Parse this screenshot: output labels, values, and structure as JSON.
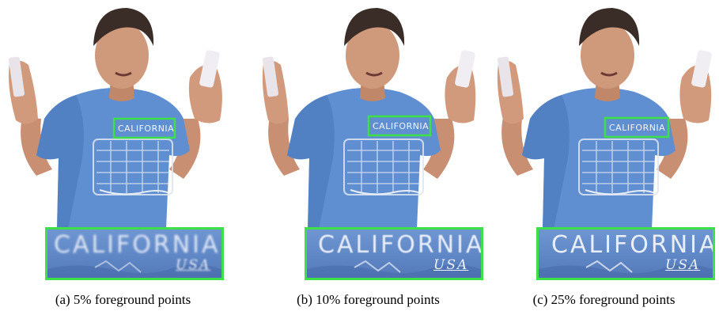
{
  "figure": {
    "panels": [
      {
        "caption": "(a) 5% foreground points",
        "shirt_text": "CALIFORNIA",
        "zoom_text": "CALIFORNIA",
        "zoom_subtext": "USA"
      },
      {
        "caption": "(b) 10% foreground points",
        "shirt_text": "CALIFORNIA",
        "zoom_text": "CALIFORNIA",
        "zoom_subtext": "USA"
      },
      {
        "caption": "(c) 25% foreground points",
        "shirt_text": "CALIFORNIA",
        "zoom_text": "CALIFORNIA",
        "zoom_subtext": "USA"
      }
    ]
  },
  "colors": {
    "highlight_box": "#3ee04a",
    "shirt": "#5f8fd0",
    "skin": "#c98f72",
    "hair": "#3a2c27"
  }
}
